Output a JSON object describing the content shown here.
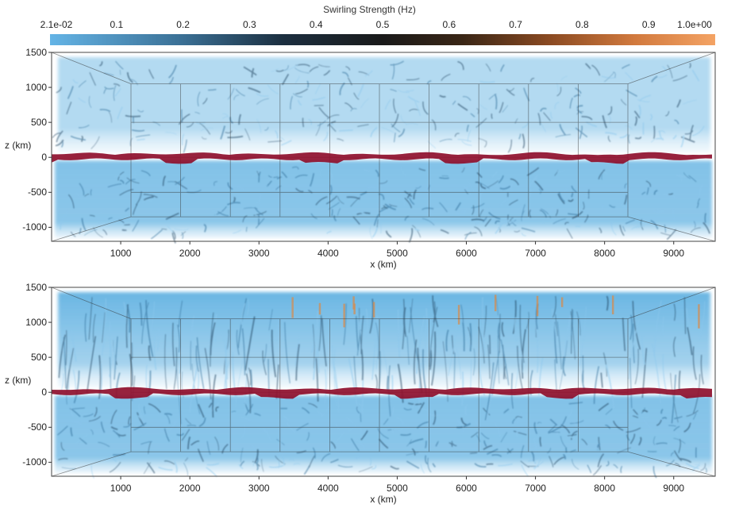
{
  "colorbar": {
    "title": "Swirling Strength (Hz)",
    "ticks": [
      "2.1e-02",
      "0.1",
      "0.2",
      "0.3",
      "0.4",
      "0.5",
      "0.6",
      "0.7",
      "0.8",
      "0.9",
      "1.0e+00"
    ],
    "colors": [
      "#64b4e6",
      "#3a6f94",
      "#1c2f40",
      "#1a1a1a",
      "#3a2616",
      "#8a4a22",
      "#d27a3e",
      "#f4a364"
    ]
  },
  "panels": [
    {
      "z_title": "z (km)",
      "x_title": "x (km)",
      "z_ticks": [
        "1500",
        "1000",
        "500",
        "0",
        "-500",
        "-1000"
      ],
      "x_ticks": [
        "1000",
        "2000",
        "3000",
        "4000",
        "5000",
        "6000",
        "7000",
        "8000",
        "9000"
      ],
      "description": "top"
    },
    {
      "z_title": "z (km)",
      "x_title": "x (km)",
      "z_ticks": [
        "1500",
        "1000",
        "500",
        "0",
        "-500",
        "-1000"
      ],
      "x_ticks": [
        "1000",
        "2000",
        "3000",
        "4000",
        "5000",
        "6000",
        "7000",
        "8000",
        "9000"
      ],
      "description": "bottom"
    }
  ],
  "palette": {
    "volume_blue": "#5aaee0",
    "volume_light": "#bfe0f4",
    "surface_red": "#8e0f2c",
    "grid": "#333333"
  }
}
